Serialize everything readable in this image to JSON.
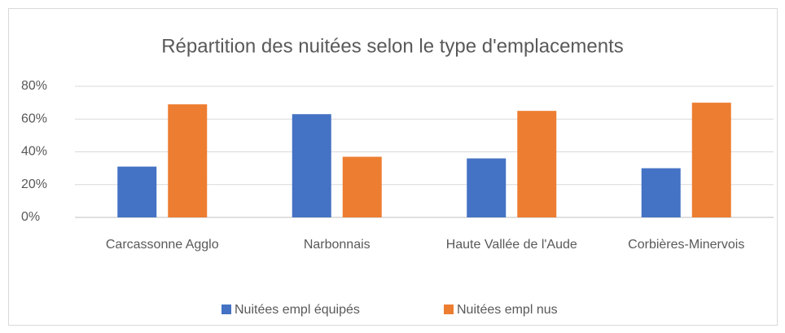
{
  "chart_data": {
    "type": "bar",
    "title": "Répartition des nuitées selon le type d'emplacements",
    "categories": [
      "Carcassonne Agglo",
      "Narbonnais",
      "Haute Vallée de l'Aude",
      "Corbières-Minervois"
    ],
    "series": [
      {
        "name": "Nuitées empl équipés",
        "color": "#4472c4",
        "values": [
          31,
          63,
          36,
          30
        ]
      },
      {
        "name": "Nuitées empl nus",
        "color": "#ed7d31",
        "values": [
          69,
          37,
          65,
          70
        ]
      }
    ],
    "ylim": [
      0,
      80
    ],
    "yticks": [
      {
        "value": 0,
        "label": "0%"
      },
      {
        "value": 20,
        "label": "20%"
      },
      {
        "value": 40,
        "label": "40%"
      },
      {
        "value": 60,
        "label": "60%"
      },
      {
        "value": 80,
        "label": "80%"
      }
    ],
    "grid": true,
    "legend": "bottom"
  }
}
